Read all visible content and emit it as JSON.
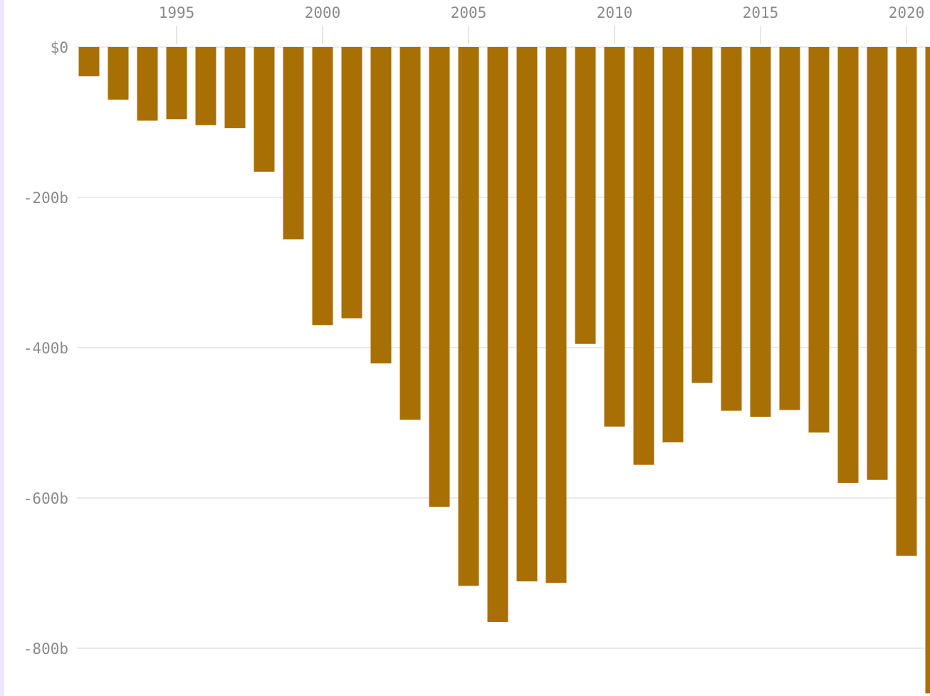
{
  "colors": {
    "bar": "#a86f05",
    "grid": "#e3e3e3",
    "label": "#8a8a8a",
    "frame": "#ebe6fb"
  },
  "chart_data": {
    "type": "bar",
    "title": "",
    "xlabel": "",
    "ylabel": "",
    "x_tick_labels": [
      "1995",
      "2000",
      "2005",
      "2010",
      "2015",
      "2020"
    ],
    "y_tick_labels": [
      "$0",
      "-200b",
      "-400b",
      "-600b",
      "-800b"
    ],
    "y_ticks": [
      0,
      -200,
      -400,
      -600,
      -800
    ],
    "ylim": [
      -860,
      0
    ],
    "grid": true,
    "categories": [
      1992,
      1993,
      1994,
      1995,
      1996,
      1997,
      1998,
      1999,
      2000,
      2001,
      2002,
      2003,
      2004,
      2005,
      2006,
      2007,
      2008,
      2009,
      2010,
      2011,
      2012,
      2013,
      2014,
      2015,
      2016,
      2017,
      2018,
      2019,
      2020,
      2021
    ],
    "values": [
      -39,
      -70,
      -98,
      -96,
      -104,
      -108,
      -166,
      -256,
      -370,
      -361,
      -421,
      -496,
      -612,
      -717,
      -765,
      -711,
      -713,
      -395,
      -505,
      -556,
      -526,
      -447,
      -484,
      -492,
      -483,
      -513,
      -580,
      -576,
      -677,
      -860
    ]
  }
}
